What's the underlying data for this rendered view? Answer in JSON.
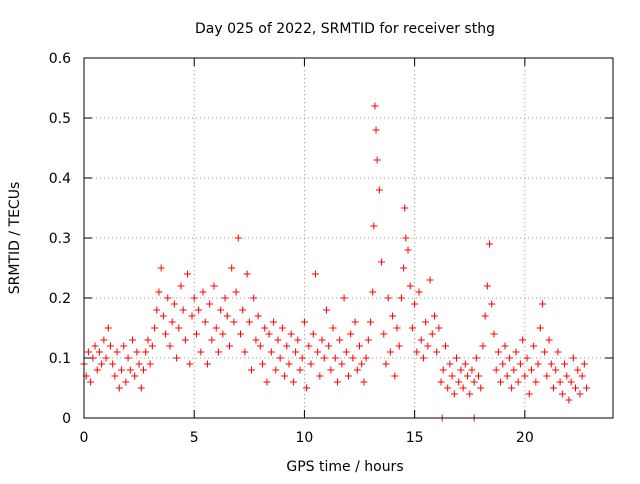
{
  "chart_data": {
    "type": "scatter",
    "title": "Day 025 of 2022, SRMTID for receiver sthg",
    "xlabel": "GPS time / hours",
    "ylabel": "SRMTID / TECUs",
    "xlim": [
      0,
      24
    ],
    "ylim": [
      0,
      0.6
    ],
    "xticks": [
      0,
      5,
      10,
      15,
      20
    ],
    "yticks": [
      0,
      0.1,
      0.2,
      0.3,
      0.4,
      0.5,
      0.6
    ],
    "xtick_labels": [
      "0",
      "5",
      "10",
      "15",
      "20"
    ],
    "ytick_labels": [
      "0",
      "0.1",
      "0.2",
      "0.3",
      "0.4",
      "0.5",
      "0.6"
    ],
    "grid": true,
    "legend": "none",
    "marker": "plus",
    "series": [
      {
        "name": "SRMTID",
        "color": "#ff0000",
        "x": [
          0.0,
          0.1,
          0.2,
          0.3,
          0.4,
          0.5,
          0.6,
          0.7,
          0.8,
          0.9,
          1.0,
          1.1,
          1.2,
          1.3,
          1.4,
          1.5,
          1.6,
          1.7,
          1.8,
          1.9,
          2.0,
          2.1,
          2.2,
          2.3,
          2.4,
          2.5,
          2.6,
          2.7,
          2.8,
          2.9,
          3.0,
          3.1,
          3.2,
          3.3,
          3.4,
          3.5,
          3.6,
          3.7,
          3.8,
          3.9,
          4.0,
          4.1,
          4.2,
          4.3,
          4.4,
          4.5,
          4.6,
          4.7,
          4.8,
          4.9,
          5.0,
          5.1,
          5.2,
          5.3,
          5.4,
          5.5,
          5.6,
          5.7,
          5.8,
          5.9,
          6.0,
          6.1,
          6.2,
          6.3,
          6.4,
          6.5,
          6.6,
          6.7,
          6.8,
          6.9,
          7.0,
          7.1,
          7.2,
          7.3,
          7.4,
          7.5,
          7.6,
          7.7,
          7.8,
          7.9,
          8.0,
          8.1,
          8.2,
          8.3,
          8.4,
          8.5,
          8.6,
          8.7,
          8.8,
          8.9,
          9.0,
          9.1,
          9.2,
          9.3,
          9.4,
          9.5,
          9.6,
          9.7,
          9.8,
          9.9,
          10.0,
          10.1,
          10.2,
          10.3,
          10.4,
          10.5,
          10.6,
          10.7,
          10.8,
          10.9,
          11.0,
          11.1,
          11.2,
          11.3,
          11.4,
          11.5,
          11.6,
          11.7,
          11.8,
          11.9,
          12.0,
          12.1,
          12.2,
          12.3,
          12.4,
          12.5,
          12.6,
          12.7,
          12.8,
          12.9,
          13.0,
          13.1,
          13.15,
          13.2,
          13.25,
          13.3,
          13.4,
          13.5,
          13.6,
          13.7,
          13.8,
          13.9,
          14.0,
          14.1,
          14.2,
          14.3,
          14.4,
          14.5,
          14.55,
          14.6,
          14.7,
          14.8,
          14.9,
          15.0,
          15.1,
          15.2,
          15.3,
          15.4,
          15.5,
          15.6,
          15.7,
          15.8,
          15.9,
          16.0,
          16.1,
          16.2,
          16.3,
          16.4,
          16.5,
          16.6,
          16.7,
          16.8,
          16.9,
          17.0,
          17.1,
          17.2,
          17.3,
          17.4,
          17.5,
          17.6,
          17.7,
          17.8,
          17.9,
          18.0,
          18.1,
          18.2,
          18.3,
          18.4,
          18.5,
          18.6,
          18.7,
          18.8,
          18.9,
          19.0,
          19.1,
          19.2,
          19.3,
          19.4,
          19.5,
          19.6,
          19.7,
          19.8,
          19.9,
          20.0,
          20.1,
          20.2,
          20.3,
          20.4,
          20.5,
          20.6,
          20.7,
          20.8,
          20.9,
          21.0,
          21.1,
          21.2,
          21.3,
          21.4,
          21.5,
          21.6,
          21.7,
          21.8,
          21.9,
          22.0,
          22.1,
          22.2,
          22.3,
          22.4,
          22.5,
          22.6,
          22.7,
          22.8,
          16.25,
          17.7
        ],
        "y": [
          0.09,
          0.07,
          0.11,
          0.06,
          0.1,
          0.12,
          0.08,
          0.11,
          0.09,
          0.13,
          0.1,
          0.15,
          0.12,
          0.09,
          0.07,
          0.11,
          0.05,
          0.08,
          0.12,
          0.06,
          0.1,
          0.08,
          0.13,
          0.07,
          0.11,
          0.09,
          0.05,
          0.08,
          0.11,
          0.13,
          0.09,
          0.12,
          0.15,
          0.18,
          0.21,
          0.25,
          0.17,
          0.14,
          0.2,
          0.12,
          0.16,
          0.19,
          0.1,
          0.15,
          0.22,
          0.18,
          0.13,
          0.24,
          0.09,
          0.17,
          0.2,
          0.14,
          0.18,
          0.11,
          0.21,
          0.16,
          0.09,
          0.19,
          0.13,
          0.22,
          0.15,
          0.11,
          0.18,
          0.14,
          0.2,
          0.17,
          0.12,
          0.25,
          0.16,
          0.21,
          0.3,
          0.14,
          0.18,
          0.11,
          0.24,
          0.16,
          0.08,
          0.2,
          0.13,
          0.17,
          0.12,
          0.09,
          0.15,
          0.06,
          0.14,
          0.11,
          0.16,
          0.08,
          0.13,
          0.1,
          0.15,
          0.07,
          0.12,
          0.09,
          0.14,
          0.06,
          0.11,
          0.13,
          0.08,
          0.1,
          0.16,
          0.05,
          0.12,
          0.09,
          0.14,
          0.24,
          0.11,
          0.07,
          0.13,
          0.1,
          0.18,
          0.12,
          0.08,
          0.15,
          0.1,
          0.06,
          0.13,
          0.09,
          0.2,
          0.11,
          0.07,
          0.14,
          0.1,
          0.16,
          0.08,
          0.12,
          0.09,
          0.06,
          0.1,
          0.13,
          0.16,
          0.21,
          0.32,
          0.52,
          0.48,
          0.43,
          0.38,
          0.26,
          0.14,
          0.09,
          0.2,
          0.11,
          0.17,
          0.07,
          0.15,
          0.12,
          0.2,
          0.25,
          0.35,
          0.3,
          0.28,
          0.22,
          0.15,
          0.19,
          0.11,
          0.21,
          0.13,
          0.1,
          0.16,
          0.12,
          0.23,
          0.14,
          0.17,
          0.11,
          0.15,
          0.06,
          0.08,
          0.12,
          0.05,
          0.09,
          0.07,
          0.04,
          0.1,
          0.06,
          0.08,
          0.05,
          0.09,
          0.07,
          0.04,
          0.08,
          0.06,
          0.1,
          0.07,
          0.05,
          0.12,
          0.17,
          0.22,
          0.29,
          0.19,
          0.14,
          0.08,
          0.11,
          0.06,
          0.09,
          0.12,
          0.07,
          0.1,
          0.05,
          0.08,
          0.11,
          0.06,
          0.09,
          0.13,
          0.07,
          0.1,
          0.04,
          0.08,
          0.12,
          0.06,
          0.09,
          0.15,
          0.19,
          0.11,
          0.07,
          0.13,
          0.09,
          0.05,
          0.08,
          0.11,
          0.06,
          0.04,
          0.09,
          0.07,
          0.03,
          0.06,
          0.1,
          0.05,
          0.08,
          0.04,
          0.07,
          0.09,
          0.05,
          0.0,
          0.0
        ]
      }
    ]
  }
}
